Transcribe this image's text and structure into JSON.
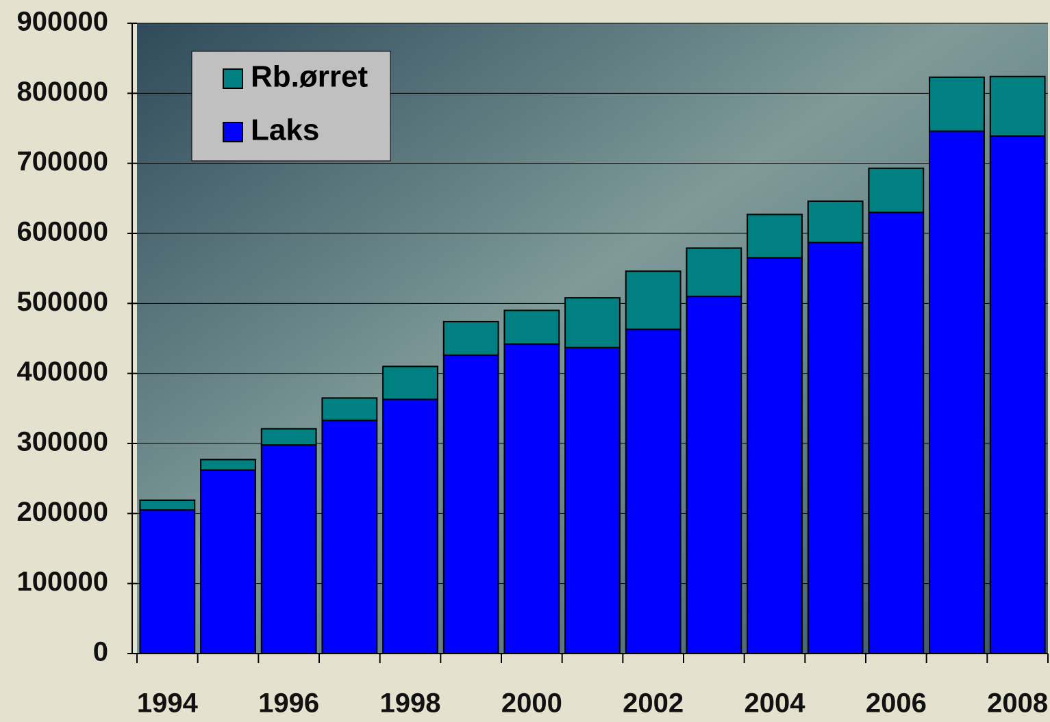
{
  "chart_data": {
    "type": "stacked_bar",
    "categories": [
      "1994",
      null,
      "1996",
      null,
      "1998",
      null,
      "2000",
      null,
      "2002",
      null,
      "2004",
      null,
      "2006",
      null,
      "2008"
    ],
    "series": [
      {
        "name": "Laks",
        "color": "#0000ff",
        "values": [
          205000,
          262000,
          298000,
          333000,
          363000,
          426000,
          442000,
          437000,
          463000,
          510000,
          565000,
          587000,
          630000,
          746000,
          739000
        ]
      },
      {
        "name": "Rb.ørret",
        "color": "#008080",
        "values": [
          14000,
          15000,
          23000,
          32000,
          47000,
          48000,
          48000,
          71000,
          83000,
          69000,
          62000,
          59000,
          63000,
          77000,
          85000
        ]
      }
    ],
    "ylim": [
      0,
      900000
    ],
    "yticks": [
      0,
      100000,
      200000,
      300000,
      400000,
      500000,
      600000,
      700000,
      800000,
      900000
    ],
    "grid": true,
    "legend": "top-left"
  }
}
